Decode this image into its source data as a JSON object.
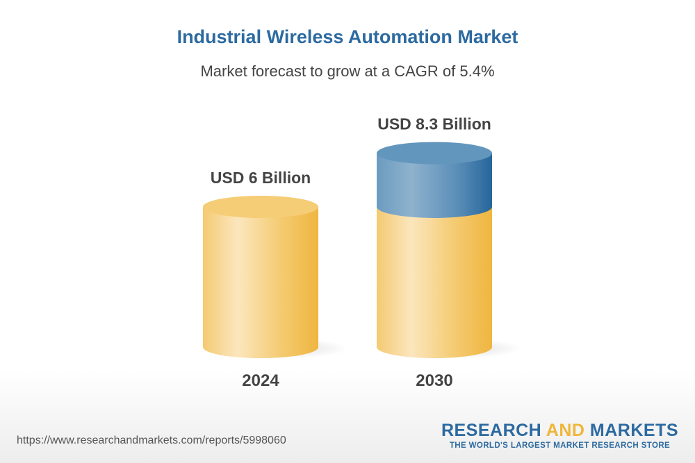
{
  "chart_data": {
    "type": "bar",
    "style": "3d-cylinder",
    "title": "Industrial Wireless Automation Market",
    "subtitle": "Market forecast to grow at a CAGR of 5.4%",
    "categories": [
      "2024",
      "2030"
    ],
    "values": [
      6,
      8.3
    ],
    "unit": "USD Billion",
    "data_labels": [
      "USD 6 Billion",
      "USD 8.3 Billion"
    ],
    "colors": {
      "base": "#f2c15a",
      "growth": "#3d79aa"
    },
    "grid": false
  },
  "footer": {
    "url": "https://www.researchandmarkets.com/reports/5998060",
    "logo_part1": "RESEARCH ",
    "logo_part2": "AND",
    "logo_part3": " MARKETS",
    "logo_tagline": "THE WORLD'S LARGEST MARKET RESEARCH STORE"
  }
}
